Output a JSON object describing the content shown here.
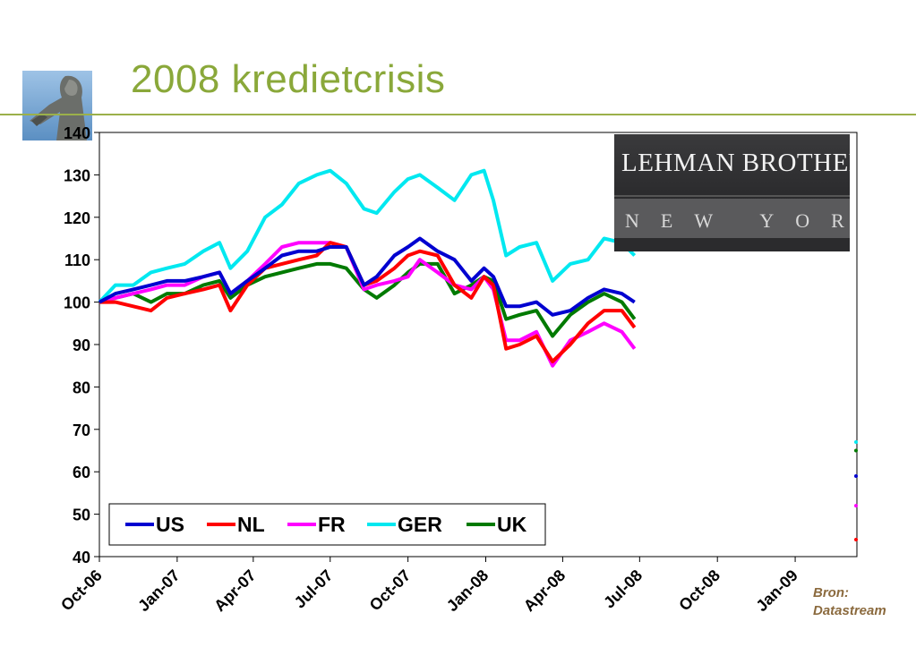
{
  "slide": {
    "title": "2008 kredietcrisis",
    "source_line1": "Bron:",
    "source_line2": "Datastream"
  },
  "photo": {
    "line1": "LEHMAN BROTHERS",
    "line2": "NEW YORK"
  },
  "colors": {
    "title": "#8aa83a",
    "rule": "#9bb04a",
    "source": "#8b6a3e"
  },
  "chart_data": {
    "type": "line",
    "title": "",
    "xlabel": "",
    "ylabel": "",
    "ylim": [
      40,
      140
    ],
    "yticks": [
      40,
      50,
      60,
      70,
      80,
      90,
      100,
      110,
      120,
      130,
      140
    ],
    "xtick_labels": [
      "Oct-06",
      "Jan-07",
      "Apr-07",
      "Jul-07",
      "Oct-07",
      "Jan-08",
      "Apr-08",
      "Jul-08",
      "Oct-08",
      "Jan-09"
    ],
    "x_start": "2006-10-01",
    "x_end": "2009-03-15",
    "legend_position": "bottom-left",
    "grid": false,
    "series": [
      {
        "name": "US",
        "color": "#0000d0",
        "dates": [
          "2006-10-01",
          "2006-10-20",
          "2006-11-10",
          "2006-12-01",
          "2006-12-20",
          "2007-01-10",
          "2007-02-01",
          "2007-02-20",
          "2007-03-05",
          "2007-03-25",
          "2007-04-15",
          "2007-05-05",
          "2007-05-25",
          "2007-06-15",
          "2007-07-01",
          "2007-07-20",
          "2007-08-10",
          "2007-08-25",
          "2007-09-15",
          "2007-10-01",
          "2007-10-15",
          "2007-11-05",
          "2007-11-25",
          "2007-12-15",
          "2007-12-30",
          "2008-01-10",
          "2008-01-25",
          "2008-02-10",
          "2008-03-01",
          "2008-03-20",
          "2008-04-10",
          "2008-05-01",
          "2008-05-20",
          "2008-06-10",
          "2008-06-25"
        ],
        "values": [
          100,
          102,
          103,
          104,
          105,
          105,
          106,
          107,
          102,
          105,
          108,
          111,
          112,
          112,
          113,
          113,
          104,
          106,
          111,
          113,
          115,
          112,
          110,
          105,
          108,
          106,
          99,
          99,
          100,
          97,
          98,
          101,
          103,
          102,
          100
        ],
        "end_value": 59
      },
      {
        "name": "NL",
        "color": "#ff0000",
        "dates": [
          "2006-10-01",
          "2006-10-20",
          "2006-11-10",
          "2006-12-01",
          "2006-12-20",
          "2007-01-10",
          "2007-02-01",
          "2007-02-20",
          "2007-03-05",
          "2007-03-25",
          "2007-04-15",
          "2007-05-05",
          "2007-05-25",
          "2007-06-15",
          "2007-07-01",
          "2007-07-20",
          "2007-08-10",
          "2007-08-25",
          "2007-09-15",
          "2007-10-01",
          "2007-10-15",
          "2007-11-05",
          "2007-11-25",
          "2007-12-15",
          "2007-12-30",
          "2008-01-10",
          "2008-01-25",
          "2008-02-10",
          "2008-03-01",
          "2008-03-20",
          "2008-04-10",
          "2008-05-01",
          "2008-05-20",
          "2008-06-10",
          "2008-06-25"
        ],
        "values": [
          100,
          100,
          99,
          98,
          101,
          102,
          103,
          104,
          98,
          104,
          108,
          109,
          110,
          111,
          114,
          113,
          104,
          105,
          108,
          111,
          112,
          111,
          104,
          101,
          106,
          104,
          89,
          90,
          92,
          86,
          90,
          95,
          98,
          98,
          94
        ],
        "end_value": 44
      },
      {
        "name": "FR",
        "color": "#ff00ff",
        "dates": [
          "2006-10-01",
          "2006-10-20",
          "2006-11-10",
          "2006-12-01",
          "2006-12-20",
          "2007-01-10",
          "2007-02-01",
          "2007-02-20",
          "2007-03-05",
          "2007-03-25",
          "2007-04-15",
          "2007-05-05",
          "2007-05-25",
          "2007-06-15",
          "2007-07-01",
          "2007-07-20",
          "2007-08-10",
          "2007-08-25",
          "2007-09-15",
          "2007-10-01",
          "2007-10-15",
          "2007-11-05",
          "2007-11-25",
          "2007-12-15",
          "2007-12-30",
          "2008-01-10",
          "2008-01-25",
          "2008-02-10",
          "2008-03-01",
          "2008-03-20",
          "2008-04-10",
          "2008-05-01",
          "2008-05-20",
          "2008-06-10",
          "2008-06-25"
        ],
        "values": [
          100,
          101,
          102,
          103,
          104,
          104,
          106,
          107,
          102,
          105,
          109,
          113,
          114,
          114,
          114,
          113,
          103,
          104,
          105,
          106,
          110,
          107,
          104,
          103,
          106,
          103,
          91,
          91,
          93,
          85,
          91,
          93,
          95,
          93,
          89
        ],
        "end_value": 52
      },
      {
        "name": "GER",
        "color": "#00e8f0",
        "dates": [
          "2006-10-01",
          "2006-10-20",
          "2006-11-10",
          "2006-12-01",
          "2006-12-20",
          "2007-01-10",
          "2007-02-01",
          "2007-02-20",
          "2007-03-05",
          "2007-03-25",
          "2007-04-15",
          "2007-05-05",
          "2007-05-25",
          "2007-06-15",
          "2007-07-01",
          "2007-07-20",
          "2007-08-10",
          "2007-08-25",
          "2007-09-15",
          "2007-10-01",
          "2007-10-15",
          "2007-11-05",
          "2007-11-25",
          "2007-12-15",
          "2007-12-30",
          "2008-01-10",
          "2008-01-25",
          "2008-02-10",
          "2008-03-01",
          "2008-03-20",
          "2008-04-10",
          "2008-05-01",
          "2008-05-20",
          "2008-06-10",
          "2008-06-25"
        ],
        "values": [
          100,
          104,
          104,
          107,
          108,
          109,
          112,
          114,
          108,
          112,
          120,
          123,
          128,
          130,
          131,
          128,
          122,
          121,
          126,
          129,
          130,
          127,
          124,
          130,
          131,
          124,
          111,
          113,
          114,
          105,
          109,
          110,
          115,
          114,
          111
        ],
        "end_value": 67
      },
      {
        "name": "UK",
        "color": "#007a00",
        "dates": [
          "2006-10-01",
          "2006-10-20",
          "2006-11-10",
          "2006-12-01",
          "2006-12-20",
          "2007-01-10",
          "2007-02-01",
          "2007-02-20",
          "2007-03-05",
          "2007-03-25",
          "2007-04-15",
          "2007-05-05",
          "2007-05-25",
          "2007-06-15",
          "2007-07-01",
          "2007-07-20",
          "2007-08-10",
          "2007-08-25",
          "2007-09-15",
          "2007-10-01",
          "2007-10-15",
          "2007-11-05",
          "2007-11-25",
          "2007-12-15",
          "2007-12-30",
          "2008-01-10",
          "2008-01-25",
          "2008-02-10",
          "2008-03-01",
          "2008-03-20",
          "2008-04-10",
          "2008-05-01",
          "2008-05-20",
          "2008-06-10",
          "2008-06-25"
        ],
        "values": [
          100,
          101,
          102,
          100,
          102,
          102,
          104,
          105,
          101,
          104,
          106,
          107,
          108,
          109,
          109,
          108,
          103,
          101,
          104,
          107,
          109,
          109,
          102,
          104,
          106,
          105,
          96,
          97,
          98,
          92,
          97,
          100,
          102,
          100,
          96
        ],
        "end_value": 65
      }
    ]
  }
}
